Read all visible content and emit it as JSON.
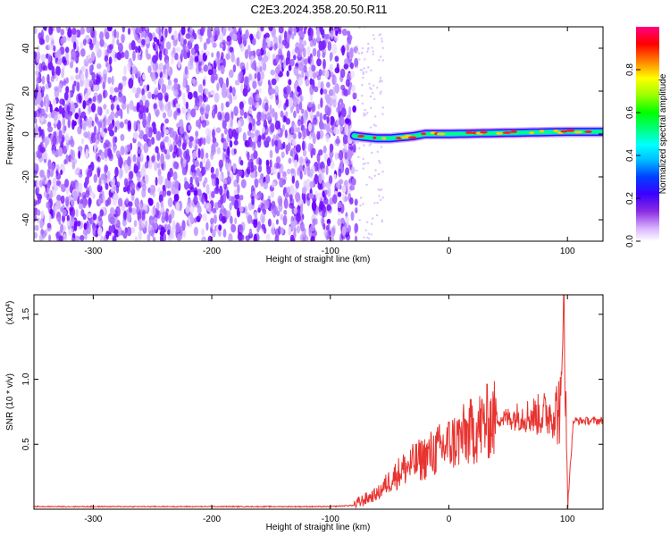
{
  "title": "C2E3.2024.358.20.50.R11",
  "chart_data": [
    {
      "type": "heatmap",
      "xlabel": "Height of straight line (km)",
      "ylabel": "Frequency (Hz)",
      "xlim": [
        -350,
        130
      ],
      "ylim": [
        -50,
        50
      ],
      "x_ticks": [
        -300,
        -200,
        -100,
        0,
        100
      ],
      "x_tick_labels": [
        "-300",
        "-200",
        "-100",
        "0",
        "100"
      ],
      "y_ticks": [
        -40,
        -20,
        0,
        20,
        40
      ],
      "y_tick_labels": [
        "-40",
        "-20",
        "0",
        "20",
        "40"
      ],
      "noise_region_x": [
        -350,
        -78
      ],
      "signal_band": {
        "x_range": [
          -80,
          130
        ],
        "center_frequency": [
          [
            -90,
            0
          ],
          [
            -78,
            -1
          ],
          [
            -70,
            -1.5
          ],
          [
            -60,
            -2
          ],
          [
            -50,
            -2
          ],
          [
            -40,
            -1.5
          ],
          [
            -30,
            -1
          ],
          [
            -20,
            0
          ],
          [
            0,
            0
          ],
          [
            50,
            0.5
          ],
          [
            100,
            1
          ],
          [
            130,
            1
          ]
        ]
      },
      "colorbar": {
        "label": "Normalized spectral amplitude",
        "range": [
          0,
          1
        ],
        "ticks": [
          0.0,
          0.2,
          0.4,
          0.6,
          0.8
        ],
        "tick_labels": [
          "0.0",
          "0.2",
          "0.4",
          "0.6",
          "0.8"
        ],
        "colors": [
          "#ffffff",
          "#c896ff",
          "#8a2be2",
          "#4b00ff",
          "#0000ff",
          "#00bfff",
          "#00ffff",
          "#00ff80",
          "#00ff00",
          "#80ff00",
          "#ffff00",
          "#ff8000",
          "#ff0000",
          "#ff0080"
        ]
      },
      "grid": false
    },
    {
      "type": "line",
      "xlabel": "Height of straight line (km)",
      "ylabel": "SNR (10 * v/v)",
      "y_multiplier": "(x10⁴)",
      "y_multiplier_prefix": "(x10",
      "y_multiplier_exp": "4",
      "y_multiplier_suffix": ")",
      "xlim": [
        -350,
        130
      ],
      "ylim": [
        0,
        1.65
      ],
      "x_ticks": [
        -300,
        -200,
        -100,
        0,
        100
      ],
      "x_tick_labels": [
        "-300",
        "-200",
        "-100",
        "0",
        "100"
      ],
      "y_ticks": [
        0.5,
        1.0,
        1.5
      ],
      "y_tick_labels": [
        "0.5",
        "1.0",
        "1.5"
      ],
      "series": [
        {
          "color": "#e8332f",
          "x": [
            -350,
            -100,
            -80,
            -70,
            -60,
            -50,
            -40,
            -30,
            -20,
            -10,
            0,
            10,
            20,
            30,
            40,
            50,
            60,
            70,
            80,
            90,
            95,
            97,
            100,
            105,
            110,
            120,
            130
          ],
          "y": [
            0.02,
            0.02,
            0.03,
            0.08,
            0.12,
            0.22,
            0.3,
            0.35,
            0.4,
            0.45,
            0.5,
            0.55,
            0.6,
            0.66,
            0.7,
            0.7,
            0.72,
            0.72,
            0.73,
            0.75,
            0.8,
            1.65,
            0.01,
            0.68,
            0.68,
            0.68,
            0.68
          ]
        }
      ],
      "grid": false
    }
  ]
}
